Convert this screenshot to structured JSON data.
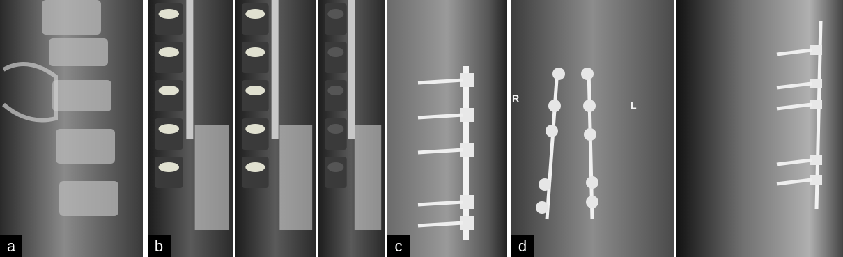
{
  "panels": [
    {
      "label": "a"
    },
    {
      "label": "b"
    },
    {
      "label": "c"
    },
    {
      "label": "d",
      "markers": [
        "R",
        "L"
      ]
    }
  ]
}
